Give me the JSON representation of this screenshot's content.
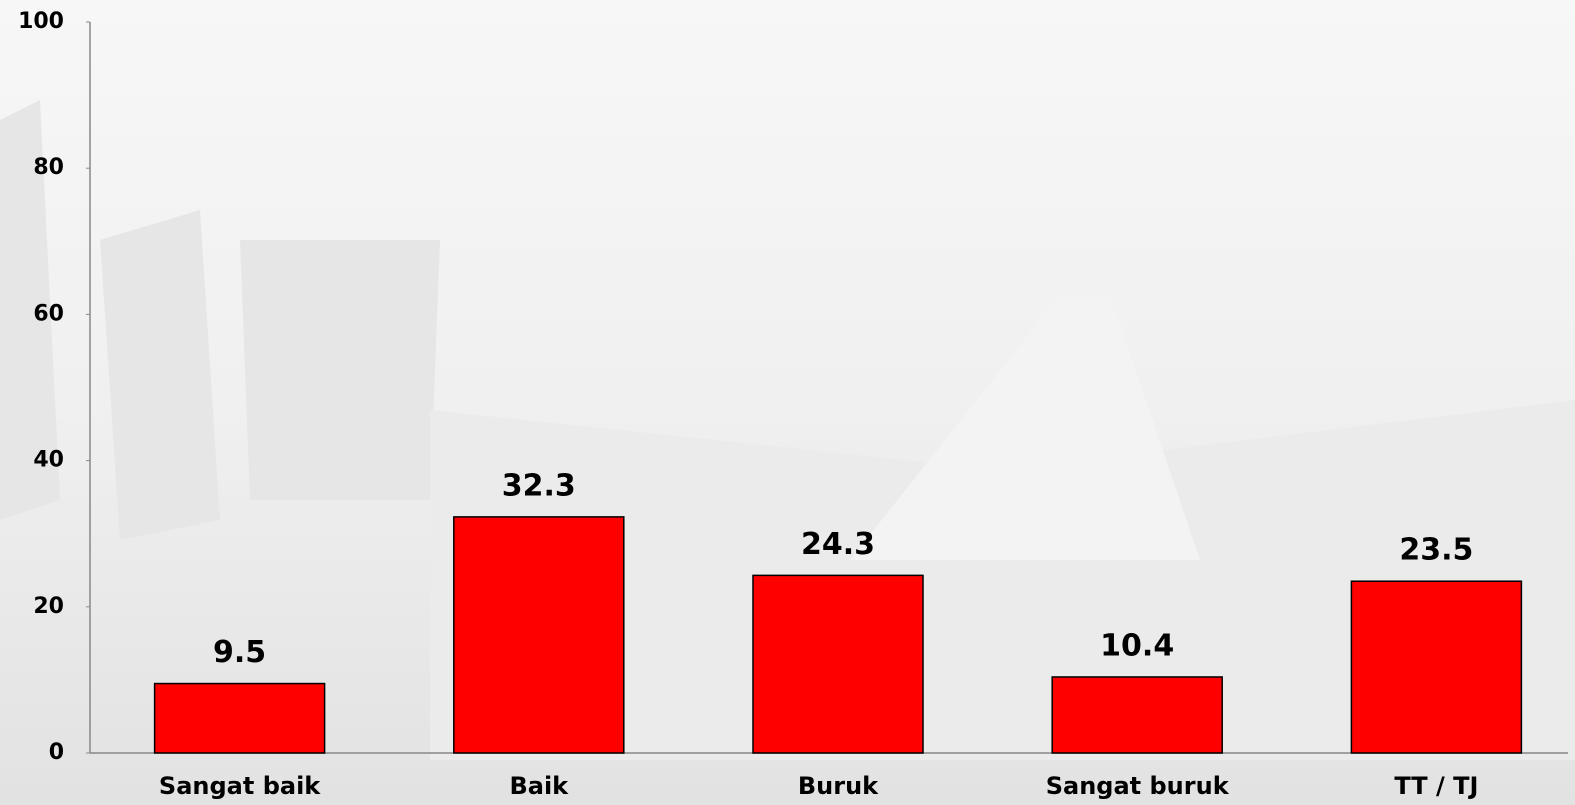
{
  "chart_data": {
    "type": "bar",
    "categories": [
      "Sangat baik",
      "Baik",
      "Buruk",
      "Sangat buruk",
      "TT / TJ"
    ],
    "values": [
      9.5,
      32.3,
      24.3,
      10.4,
      23.5
    ],
    "color": "#ff0000",
    "ylim": [
      0,
      100
    ],
    "yticks": [
      0,
      20,
      40,
      60,
      80,
      100
    ],
    "grid": false
  }
}
